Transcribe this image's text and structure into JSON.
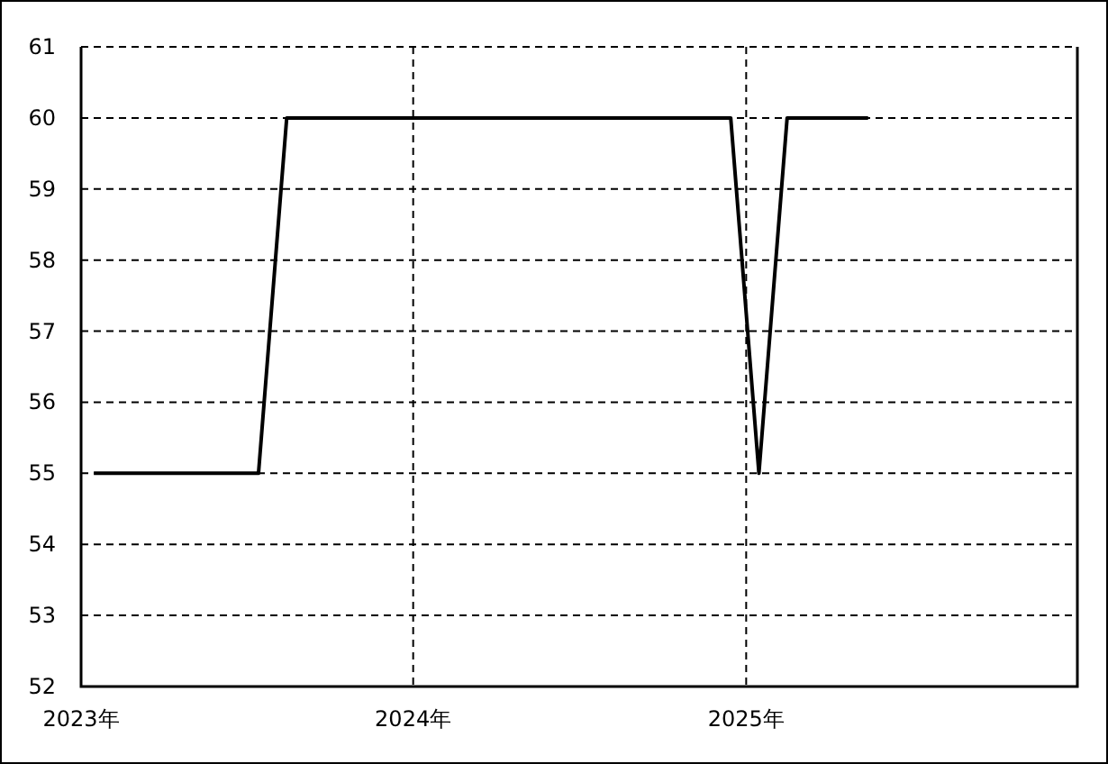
{
  "chart_data": {
    "type": "line",
    "x": [
      "2023-01-15",
      "2023-07-15",
      "2023-08-15",
      "2024-12-15",
      "2025-01-15",
      "2025-02-15",
      "2025-05-15"
    ],
    "series": [
      {
        "color": "#000000",
        "values": [
          55,
          55,
          60,
          60,
          55,
          60,
          60
        ]
      }
    ],
    "xlim": [
      "2023-01-01",
      "2025-12-31"
    ],
    "xticks": [
      {
        "value": "2023-01-01",
        "label": "2023年"
      },
      {
        "value": "2024-01-01",
        "label": "2024年"
      },
      {
        "value": "2025-01-01",
        "label": "2025年"
      }
    ],
    "ylim": [
      52,
      61
    ],
    "yticks": [
      52,
      53,
      54,
      55,
      56,
      57,
      58,
      59,
      60,
      61
    ],
    "grid": true
  }
}
